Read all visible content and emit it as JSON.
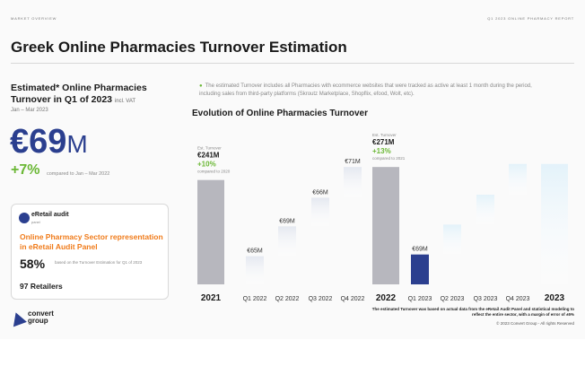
{
  "header": {
    "left_tag": "MARKET OVERVIEW",
    "right_tag": "Q1 2023 ONLINE PHARMACY REPORT",
    "title": "Greek Online Pharmacies Turnover Estimation"
  },
  "summary": {
    "heading": "Estimated* Online Pharmacies Turnover in Q1 of 2023",
    "heading_suffix": "incl. VAT",
    "period": "Jan – Mar 2023",
    "value": "€69",
    "unit": "M",
    "growth": "+7%",
    "growth_note": "compared to Jan – Mar 2022"
  },
  "card": {
    "logo_text": "eRetail audit",
    "logo_sub": "panel",
    "title": "Online Pharmacy Sector representation in eRetail Audit Panel",
    "pct": "58%",
    "pct_note": "based on the Turnover Estimation for Q1 of 2023",
    "retailers": "97 Retailers"
  },
  "brand": {
    "line1": "convert",
    "line2": "group"
  },
  "note": "The estimated Turnover includes all Pharmacies with ecommerce websites that were tracked as active at least 1 month during the period, including sales from third-party platforms (Skroutz Marketplace, Shopflix, efood, Wolt, etc).",
  "chart_title": "Evolution of Online Pharmacies Turnover",
  "footnote": "The estimated Turnover was based on actual data from the eRetail Audit Panel and statistical modeling to reflect the entire sector, with a margin of error of ±5%",
  "copyright": "© 2023 Convert Group - All rights Reserved",
  "colors": {
    "year_bar": "#b7b7be",
    "accent_bar": "#2b3f8f",
    "q2022_bar": "#e4e8f0",
    "q2023_bar": "#e3f2fa",
    "growth": "#6ab734"
  },
  "chart_data": {
    "type": "bar",
    "subtype": "waterfall",
    "categories": [
      "2021",
      "Q1 2022",
      "Q2 2022",
      "Q3 2022",
      "Q4 2022",
      "2022",
      "Q1 2023",
      "Q2 2023",
      "Q3 2023",
      "Q4 2023",
      "2023"
    ],
    "values": [
      241,
      65,
      69,
      66,
      71,
      271,
      69,
      null,
      null,
      null,
      null
    ],
    "value_labels": [
      "",
      "€65M",
      "€69M",
      "€66M",
      "€71M",
      "",
      "€69M",
      "",
      "",
      "",
      ""
    ],
    "bar_kinds": [
      "year",
      "q22",
      "q22",
      "q22",
      "q22",
      "year",
      "accent",
      "future",
      "future",
      "future",
      "future-total"
    ],
    "annotations": [
      {
        "category": "2021",
        "label": "Est. Turnover",
        "value": "€241M",
        "growth": "+10%",
        "note": "compared to 2020"
      },
      {
        "category": "2022",
        "label": "Est. Turnover",
        "value": "€271M",
        "growth": "+13%",
        "note": "compared to 2021"
      }
    ],
    "unit": "€M",
    "ylim": [
      0,
      290
    ],
    "grid": false,
    "legend": "none"
  }
}
